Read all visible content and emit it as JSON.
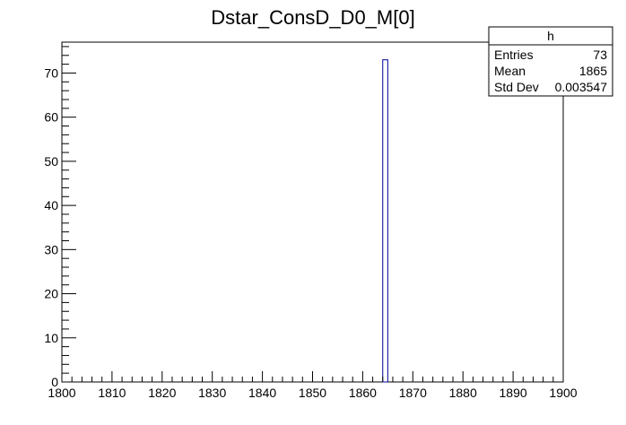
{
  "chart_data": {
    "type": "bar",
    "title": "Dstar_ConsD_D0_M[0]",
    "xlabel": "",
    "ylabel": "",
    "xlim": [
      1800,
      1900
    ],
    "ylim": [
      0,
      77
    ],
    "x_ticks": [
      "1800",
      "1810",
      "1820",
      "1830",
      "1840",
      "1850",
      "1860",
      "1870",
      "1880",
      "1890",
      "1900"
    ],
    "y_ticks": [
      "0",
      "10",
      "20",
      "30",
      "40",
      "50",
      "60",
      "70"
    ],
    "bins": [
      {
        "x_low": 1864,
        "x_high": 1865,
        "value": 73
      }
    ],
    "bar_color": "#000099",
    "grid": false,
    "stats_box": {
      "title": "h",
      "rows": [
        {
          "label": "Entries",
          "value": "73"
        },
        {
          "label": "Mean",
          "value": "1865"
        },
        {
          "label": "Std Dev",
          "value": "0.003547"
        }
      ],
      "placement": "top-right"
    }
  }
}
